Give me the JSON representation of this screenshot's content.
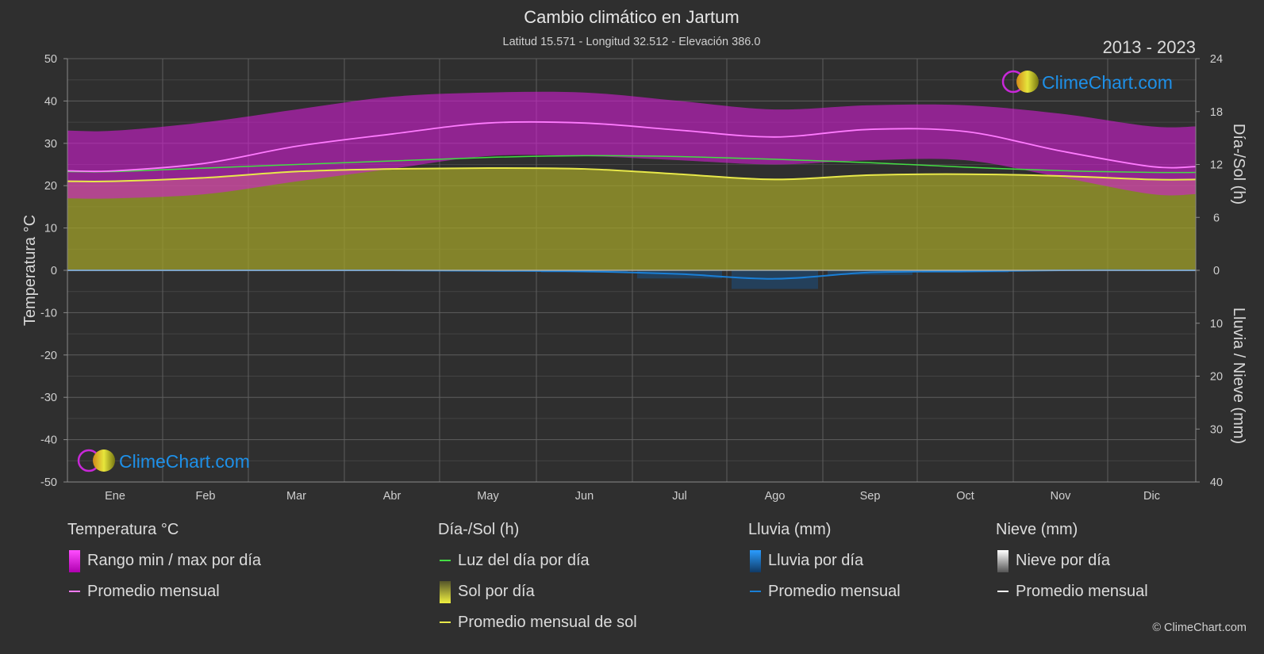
{
  "header": {
    "title": "Cambio climático en Jartum",
    "subtitle": "Latitud 15.571 - Longitud 32.512 - Elevación 386.0",
    "period": "2013 - 2023"
  },
  "logo": {
    "text": "ClimeChart.com"
  },
  "copyright": "© ClimeChart.com",
  "colors": {
    "background": "#2f2f2f",
    "temp_range": "#d21ed2",
    "temp_avg": "#ff7bff",
    "daylight": "#44dd44",
    "sunshine_fill": "#a0a02a",
    "sunshine_avg": "#e8e84a",
    "rain": "#1a7fd6",
    "snow": "#ffffff",
    "logo_text": "#1e90e8"
  },
  "legend": {
    "temperature": {
      "header": "Temperatura °C",
      "items": [
        "Rango min / max por día",
        "Promedio mensual"
      ]
    },
    "sun": {
      "header": "Día-/Sol (h)",
      "items": [
        "Luz del día por día",
        "Sol por día",
        "Promedio mensual de sol"
      ]
    },
    "rain": {
      "header": "Lluvia (mm)",
      "items": [
        "Lluvia por día",
        "Promedio mensual"
      ]
    },
    "snow": {
      "header": "Nieve (mm)",
      "items": [
        "Nieve por día",
        "Promedio mensual"
      ]
    }
  },
  "chart_data": {
    "type": "area",
    "title": "Cambio climático en Jartum",
    "categories": [
      "Ene",
      "Feb",
      "Mar",
      "Abr",
      "May",
      "Jun",
      "Jul",
      "Ago",
      "Sep",
      "Oct",
      "Nov",
      "Dic"
    ],
    "axes": {
      "left": {
        "label": "Temperatura °C",
        "min": -50,
        "max": 50,
        "ticks": [
          50,
          40,
          30,
          20,
          10,
          0,
          -10,
          -20,
          -30,
          -40,
          -50
        ]
      },
      "right_top": {
        "label": "Día-/Sol (h)",
        "min": 0,
        "max": 24,
        "ticks": [
          24,
          18,
          12,
          6,
          0
        ]
      },
      "right_bottom": {
        "label": "Lluvia / Nieve (mm)",
        "min": 0,
        "max": 40,
        "ticks": [
          0,
          10,
          20,
          30,
          40
        ]
      }
    },
    "series": [
      {
        "name": "Rango min / max por día",
        "axis": "left",
        "kind": "range",
        "min": [
          17,
          18,
          21,
          24,
          27,
          27,
          26,
          25,
          26,
          26,
          22,
          18
        ],
        "max": [
          33,
          35,
          38,
          41,
          42,
          42,
          40,
          38,
          39,
          39,
          37,
          34
        ]
      },
      {
        "name": "Promedio mensual",
        "axis": "left",
        "kind": "line",
        "group": "temperature",
        "values": [
          23.5,
          25.3,
          29.3,
          32.2,
          34.8,
          34.8,
          33.1,
          31.5,
          33.3,
          32.8,
          28.2,
          24.5
        ]
      },
      {
        "name": "Luz del día por día",
        "axis": "right_top",
        "kind": "line",
        "values": [
          11.2,
          11.6,
          12.0,
          12.4,
          12.8,
          13.0,
          12.9,
          12.6,
          12.2,
          11.7,
          11.3,
          11.1
        ]
      },
      {
        "name": "Sol por día",
        "axis": "right_top",
        "kind": "area",
        "values": [
          10.2,
          10.5,
          11.2,
          11.5,
          11.6,
          11.5,
          10.9,
          10.4,
          10.8,
          10.9,
          10.7,
          10.3
        ]
      },
      {
        "name": "Promedio mensual de sol",
        "axis": "right_top",
        "kind": "line",
        "values": [
          10.1,
          10.5,
          11.2,
          11.5,
          11.6,
          11.5,
          10.9,
          10.3,
          10.8,
          10.9,
          10.7,
          10.3
        ]
      },
      {
        "name": "Promedio mensual",
        "axis": "right_bottom",
        "kind": "line",
        "group": "rain",
        "values": [
          0,
          0,
          0,
          0,
          0.1,
          0.2,
          0.7,
          1.6,
          0.4,
          0.2,
          0,
          0
        ]
      },
      {
        "name": "Promedio mensual",
        "axis": "right_bottom",
        "kind": "line",
        "group": "snow",
        "values": [
          0,
          0,
          0,
          0,
          0,
          0,
          0,
          0,
          0,
          0,
          0,
          0
        ]
      }
    ],
    "grid": true,
    "legend_position": "bottom"
  }
}
